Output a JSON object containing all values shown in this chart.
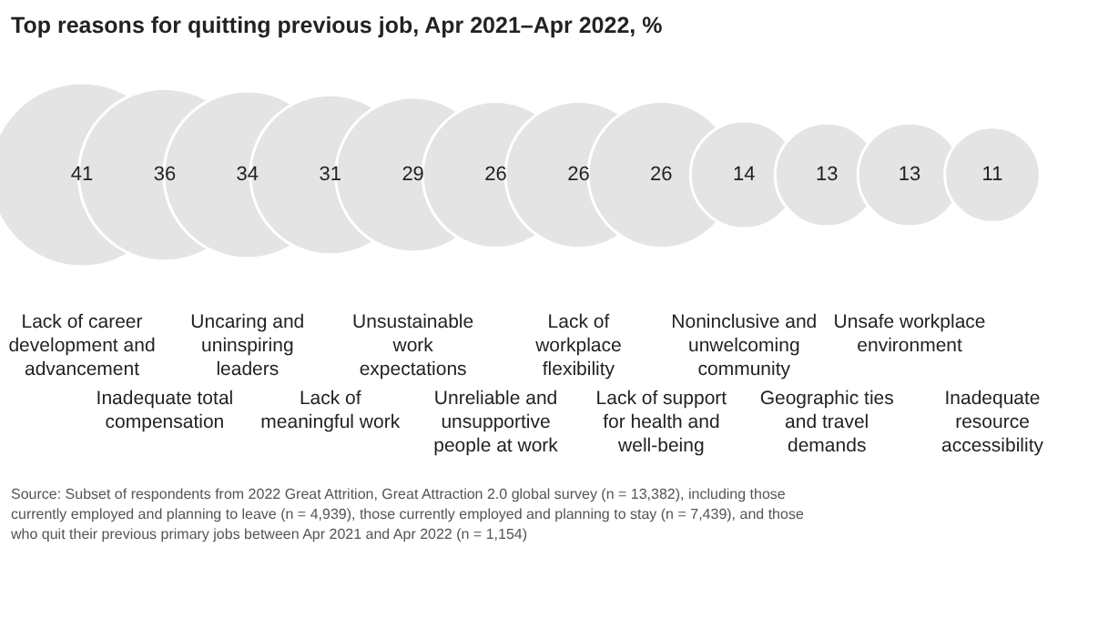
{
  "chart_data": {
    "type": "other",
    "title": "Top reasons for quitting previous job, Apr 2021–Apr 2022, %",
    "categories": [
      "Lack of career development and advancement",
      "Inadequate total compensation",
      "Uncaring and uninspiring leaders",
      "Lack of meaningful work",
      "Unsustainable work expectations",
      "Unreliable and unsupportive people at work",
      "Lack of workplace flexibility",
      "Lack of support for health and well-being",
      "Noninclusive and unwelcoming community",
      "Geographic ties and travel demands",
      "Unsafe workplace environment",
      "Inadequate resource accessibility"
    ],
    "values": [
      41,
      36,
      34,
      31,
      29,
      26,
      26,
      26,
      14,
      13,
      13,
      11
    ],
    "color": "#e4e4e4",
    "data_labels": true,
    "annotations": [
      "Source: Subset of respondents from 2022 Great Attrition, Great Attraction 2.0 global survey (n = 13,382), including those currently employed and planning to leave (n = 4,939), those currently employed and planning to stay (n = 7,439), and those who quit their previous primary jobs between Apr 2021 and Apr 2022 (n = 1,154)"
    ]
  }
}
